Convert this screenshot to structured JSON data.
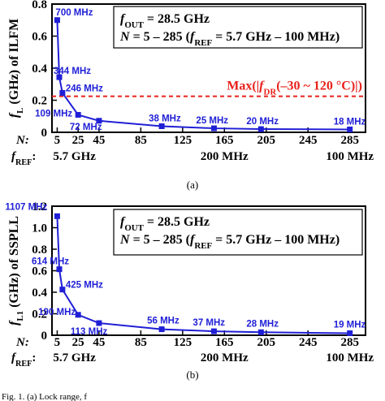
{
  "chart_data": [
    {
      "type": "line",
      "ylabel": "f_L (GHz) of ILFM",
      "ylabel_parts": [
        "f",
        "L",
        " (GHz) of ILFM"
      ],
      "ylim": [
        0,
        0.8
      ],
      "yticks": [
        "0",
        "0.2",
        "0.4",
        "0.6",
        "0.8"
      ],
      "xlim": [
        0,
        300
      ],
      "xticks": [
        "5",
        "25",
        "45",
        "85",
        "125",
        "165",
        "205",
        "245",
        "285"
      ],
      "xtick_values": [
        5,
        25,
        45,
        85,
        125,
        165,
        205,
        245,
        285
      ],
      "x_row_label": "N:",
      "fref_row_label": [
        "f",
        "REF",
        ":"
      ],
      "fref_ticks": [
        {
          "n": 5,
          "label": "5.7 GHz"
        },
        {
          "n": 165,
          "label": "200 MHz"
        },
        {
          "n": 285,
          "label": "100 MHz"
        }
      ],
      "info_line1": [
        "f",
        "OUT",
        " = 28.5 GHz"
      ],
      "info_line2": [
        "N",
        " = 5 – 285 (",
        "f",
        "REF",
        " = 5.7 GHz – 100 MHz)"
      ],
      "reference_line": {
        "y": 0.225,
        "label": [
          "Max(|",
          "f",
          "DR",
          "(–30 ~ 120 °C)|)"
        ]
      },
      "series": [
        {
          "points": [
            {
              "x": 5,
              "y": 0.7,
              "label": "700 MHz"
            },
            {
              "x": 7,
              "y": 0.344,
              "label": "344 MHz"
            },
            {
              "x": 10,
              "y": 0.246,
              "label": "246 MHz"
            },
            {
              "x": 25,
              "y": 0.109,
              "label": "109 MHz"
            },
            {
              "x": 45,
              "y": 0.072,
              "label": "72 MHz"
            },
            {
              "x": 105,
              "y": 0.038,
              "label": "38 MHz"
            },
            {
              "x": 155,
              "y": 0.025,
              "label": "25 MHz"
            },
            {
              "x": 200,
              "y": 0.02,
              "label": "20 MHz"
            },
            {
              "x": 285,
              "y": 0.018,
              "label": "18 MHz"
            }
          ]
        }
      ],
      "caption": "(a)"
    },
    {
      "type": "line",
      "ylabel": "f_L1 (GHz) of SSPLL",
      "ylabel_parts": [
        "f",
        "L1",
        " (GHz) of SSPLL"
      ],
      "ylim": [
        0,
        1.2
      ],
      "yticks": [
        "0",
        "0.2",
        "0.4",
        "0.6",
        "0.8",
        "1.0",
        "1.2"
      ],
      "xlim": [
        0,
        300
      ],
      "xticks": [
        "5",
        "25",
        "45",
        "85",
        "125",
        "165",
        "205",
        "245",
        "285"
      ],
      "xtick_values": [
        5,
        25,
        45,
        85,
        125,
        165,
        205,
        245,
        285
      ],
      "x_row_label": "N:",
      "fref_row_label": [
        "f",
        "REF",
        ":"
      ],
      "fref_ticks": [
        {
          "n": 5,
          "label": "5.7 GHz"
        },
        {
          "n": 165,
          "label": "200 MHz"
        },
        {
          "n": 285,
          "label": "100 MHz"
        }
      ],
      "info_line1": [
        "f",
        "OUT",
        " = 28.5 GHz"
      ],
      "info_line2": [
        "N",
        " = 5 – 285 (",
        "f",
        "REF",
        " = 5.7 GHz – 100 MHz)"
      ],
      "series": [
        {
          "points": [
            {
              "x": 5,
              "y": 1.107,
              "label": "1107 MHz"
            },
            {
              "x": 7,
              "y": 0.614,
              "label": "614 MHz"
            },
            {
              "x": 10,
              "y": 0.425,
              "label": "425 MHz"
            },
            {
              "x": 25,
              "y": 0.19,
              "label": "190 MHz"
            },
            {
              "x": 45,
              "y": 0.113,
              "label": "113 MHz"
            },
            {
              "x": 105,
              "y": 0.056,
              "label": "56 MHz"
            },
            {
              "x": 155,
              "y": 0.037,
              "label": "37 MHz"
            },
            {
              "x": 200,
              "y": 0.028,
              "label": "28 MHz"
            },
            {
              "x": 285,
              "y": 0.019,
              "label": "19 MHz"
            }
          ]
        }
      ],
      "caption": "(b)"
    }
  ],
  "colors": {
    "series": "#1f1fd6",
    "reference": "#e8201a",
    "axis": "#000000"
  },
  "footer_text": "Fig. 1.   (a) Lock range, f"
}
